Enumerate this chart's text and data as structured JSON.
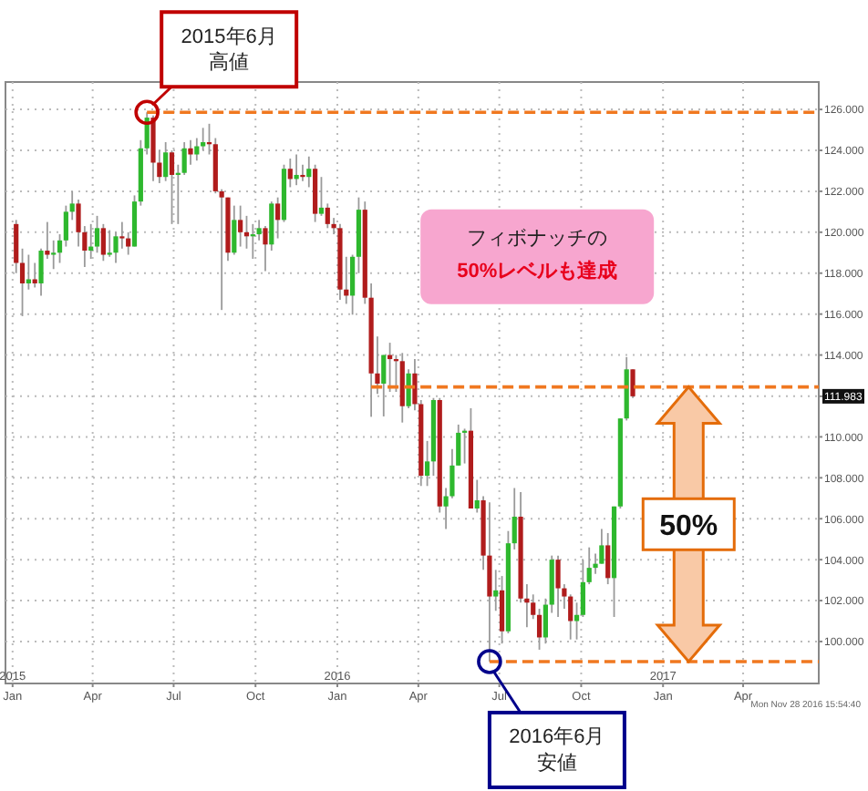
{
  "chart_data": {
    "type": "candlestick",
    "x": [
      "2015-01-05",
      "2015-01-12",
      "2015-01-19",
      "2015-01-26",
      "2015-02-02",
      "2015-02-09",
      "2015-02-16",
      "2015-02-23",
      "2015-03-02",
      "2015-03-09",
      "2015-03-16",
      "2015-03-23",
      "2015-03-30",
      "2015-04-06",
      "2015-04-13",
      "2015-04-20",
      "2015-04-27",
      "2015-05-04",
      "2015-05-11",
      "2015-05-18",
      "2015-05-25",
      "2015-06-01",
      "2015-06-08",
      "2015-06-15",
      "2015-06-22",
      "2015-06-29",
      "2015-07-06",
      "2015-07-13",
      "2015-07-20",
      "2015-07-27",
      "2015-08-03",
      "2015-08-10",
      "2015-08-17",
      "2015-08-24",
      "2015-08-31",
      "2015-09-07",
      "2015-09-14",
      "2015-09-21",
      "2015-09-28",
      "2015-10-05",
      "2015-10-12",
      "2015-10-19",
      "2015-10-26",
      "2015-11-02",
      "2015-11-09",
      "2015-11-16",
      "2015-11-23",
      "2015-11-30",
      "2015-12-07",
      "2015-12-14",
      "2015-12-21",
      "2015-12-28",
      "2016-01-04",
      "2016-01-11",
      "2016-01-18",
      "2016-01-25",
      "2016-02-01",
      "2016-02-08",
      "2016-02-15",
      "2016-02-22",
      "2016-02-29",
      "2016-03-07",
      "2016-03-14",
      "2016-03-21",
      "2016-03-28",
      "2016-04-04",
      "2016-04-11",
      "2016-04-18",
      "2016-04-25",
      "2016-05-02",
      "2016-05-09",
      "2016-05-16",
      "2016-05-23",
      "2016-05-30",
      "2016-06-06",
      "2016-06-13",
      "2016-06-20",
      "2016-06-27",
      "2016-07-04",
      "2016-07-11",
      "2016-07-18",
      "2016-07-25",
      "2016-08-01",
      "2016-08-08",
      "2016-08-15",
      "2016-08-22",
      "2016-08-29",
      "2016-09-05",
      "2016-09-12",
      "2016-09-19",
      "2016-09-26",
      "2016-10-03",
      "2016-10-10",
      "2016-10-17",
      "2016-10-24",
      "2016-10-31",
      "2016-11-07",
      "2016-11-14",
      "2016-11-21",
      "2016-11-28"
    ],
    "ohlc": [
      [
        120.4,
        120.6,
        118.0,
        118.5
      ],
      [
        118.5,
        119.2,
        115.9,
        117.5
      ],
      [
        117.5,
        118.9,
        117.2,
        117.7
      ],
      [
        117.7,
        118.5,
        117.3,
        117.5
      ],
      [
        117.5,
        119.2,
        116.9,
        119.1
      ],
      [
        119.1,
        120.5,
        118.7,
        118.9
      ],
      [
        118.9,
        119.6,
        118.2,
        119.0
      ],
      [
        119.0,
        119.9,
        118.5,
        119.6
      ],
      [
        119.6,
        121.3,
        119.3,
        121.0
      ],
      [
        121.0,
        122.0,
        120.6,
        121.4
      ],
      [
        121.4,
        121.6,
        119.3,
        120.0
      ],
      [
        120.0,
        120.3,
        118.3,
        119.1
      ],
      [
        119.1,
        120.4,
        118.7,
        119.3
      ],
      [
        119.3,
        120.8,
        119.0,
        120.2
      ],
      [
        120.2,
        120.4,
        118.6,
        118.9
      ],
      [
        118.9,
        120.1,
        118.8,
        119.0
      ],
      [
        119.0,
        120.0,
        118.5,
        119.8
      ],
      [
        119.8,
        120.5,
        119.2,
        119.7
      ],
      [
        119.7,
        120.0,
        118.9,
        119.3
      ],
      [
        119.3,
        121.8,
        119.3,
        121.5
      ],
      [
        121.5,
        124.5,
        121.3,
        124.1
      ],
      [
        124.1,
        125.86,
        123.8,
        125.6
      ],
      [
        125.6,
        125.7,
        122.5,
        123.4
      ],
      [
        123.4,
        124.0,
        122.4,
        122.7
      ],
      [
        122.7,
        124.4,
        122.5,
        123.9
      ],
      [
        123.9,
        124.0,
        120.4,
        122.8
      ],
      [
        122.8,
        123.3,
        120.4,
        122.9
      ],
      [
        122.9,
        124.4,
        122.8,
        124.1
      ],
      [
        124.1,
        124.5,
        123.3,
        123.8
      ],
      [
        123.8,
        124.6,
        123.5,
        124.2
      ],
      [
        124.2,
        125.1,
        124.0,
        124.4
      ],
      [
        124.4,
        125.3,
        123.8,
        124.3
      ],
      [
        124.3,
        124.6,
        121.9,
        122.0
      ],
      [
        122.0,
        122.1,
        116.2,
        121.7
      ],
      [
        121.7,
        121.7,
        118.6,
        119.0
      ],
      [
        119.0,
        121.3,
        118.9,
        120.6
      ],
      [
        120.6,
        121.3,
        119.3,
        120.0
      ],
      [
        120.0,
        120.8,
        119.2,
        119.8
      ],
      [
        119.8,
        120.4,
        118.7,
        119.9
      ],
      [
        119.9,
        120.6,
        119.6,
        120.2
      ],
      [
        120.2,
        120.3,
        118.1,
        119.4
      ],
      [
        119.4,
        121.5,
        119.1,
        121.4
      ],
      [
        121.4,
        121.7,
        119.7,
        120.6
      ],
      [
        120.6,
        123.3,
        120.5,
        123.1
      ],
      [
        123.1,
        123.6,
        122.2,
        122.6
      ],
      [
        122.6,
        123.8,
        122.3,
        122.8
      ],
      [
        122.8,
        123.3,
        122.5,
        122.7
      ],
      [
        122.7,
        123.7,
        122.2,
        123.1
      ],
      [
        123.1,
        123.3,
        120.5,
        120.9
      ],
      [
        120.9,
        122.7,
        120.8,
        121.2
      ],
      [
        121.2,
        121.4,
        120.2,
        120.4
      ],
      [
        120.4,
        120.7,
        119.9,
        120.2
      ],
      [
        120.2,
        120.4,
        116.7,
        117.2
      ],
      [
        117.2,
        118.8,
        116.5,
        116.9
      ],
      [
        116.9,
        118.9,
        115.97,
        118.8
      ],
      [
        118.8,
        121.7,
        118.0,
        121.1
      ],
      [
        121.1,
        121.5,
        116.5,
        116.8
      ],
      [
        116.8,
        117.5,
        110.98,
        113.1
      ],
      [
        113.1,
        114.9,
        112.1,
        112.6
      ],
      [
        112.6,
        114.0,
        111.0,
        114.0
      ],
      [
        114.0,
        114.6,
        112.2,
        113.8
      ],
      [
        113.8,
        114.0,
        112.2,
        113.7
      ],
      [
        113.7,
        114.1,
        110.7,
        111.5
      ],
      [
        111.5,
        113.3,
        111.4,
        113.1
      ],
      [
        113.1,
        113.8,
        111.3,
        111.6
      ],
      [
        111.6,
        111.8,
        107.6,
        108.1
      ],
      [
        108.1,
        109.8,
        107.6,
        108.8
      ],
      [
        108.8,
        111.9,
        108.1,
        111.8
      ],
      [
        111.8,
        111.9,
        106.3,
        106.6
      ],
      [
        106.6,
        107.5,
        105.5,
        107.1
      ],
      [
        107.1,
        109.4,
        107.0,
        108.6
      ],
      [
        108.6,
        110.6,
        108.6,
        110.2
      ],
      [
        110.2,
        110.4,
        108.7,
        110.3
      ],
      [
        110.3,
        111.4,
        106.5,
        106.5
      ],
      [
        106.5,
        107.9,
        106.3,
        106.9
      ],
      [
        106.9,
        107.1,
        103.5,
        104.2
      ],
      [
        104.2,
        106.8,
        99.02,
        102.2
      ],
      [
        102.2,
        103.5,
        101.5,
        102.5
      ],
      [
        102.5,
        103.2,
        99.9,
        100.5
      ],
      [
        100.5,
        105.4,
        100.4,
        104.8
      ],
      [
        104.8,
        107.5,
        104.5,
        106.1
      ],
      [
        106.1,
        107.3,
        101.9,
        102.1
      ],
      [
        102.1,
        102.8,
        100.7,
        101.9
      ],
      [
        101.9,
        102.3,
        101.1,
        101.3
      ],
      [
        101.3,
        101.6,
        99.6,
        100.2
      ],
      [
        100.2,
        102.1,
        99.9,
        101.8
      ],
      [
        101.8,
        104.2,
        101.4,
        104.0
      ],
      [
        104.0,
        104.2,
        101.2,
        102.6
      ],
      [
        102.6,
        102.8,
        101.6,
        102.2
      ],
      [
        102.2,
        102.3,
        100.1,
        101.0
      ],
      [
        101.0,
        101.9,
        100.1,
        101.3
      ],
      [
        101.3,
        104.0,
        101.2,
        102.9
      ],
      [
        102.9,
        104.6,
        102.8,
        103.6
      ],
      [
        103.6,
        104.3,
        103.3,
        103.8
      ],
      [
        103.8,
        105.5,
        103.8,
        104.7
      ],
      [
        104.7,
        105.3,
        102.8,
        103.1
      ],
      [
        103.1,
        106.6,
        101.2,
        106.6
      ],
      [
        106.6,
        110.9,
        106.5,
        110.9
      ],
      [
        110.9,
        113.9,
        110.8,
        113.3
      ],
      [
        113.3,
        113.3,
        111.9,
        111.983
      ]
    ],
    "colors": [
      "#b01c1c",
      "#b01c1c",
      "#2eb82e",
      "#b01c1c",
      "#2eb82e",
      "#b01c1c",
      "#2eb82e",
      "#2eb82e",
      "#2eb82e",
      "#2eb82e",
      "#b01c1c",
      "#b01c1c",
      "#2eb82e",
      "#2eb82e",
      "#b01c1c",
      "#2eb82e",
      "#2eb82e",
      "#b01c1c",
      "#b01c1c",
      "#2eb82e",
      "#2eb82e",
      "#2eb82e",
      "#b01c1c",
      "#b01c1c",
      "#2eb82e",
      "#b01c1c",
      "#2eb82e",
      "#2eb82e",
      "#b01c1c",
      "#2eb82e",
      "#2eb82e",
      "#b01c1c",
      "#b01c1c",
      "#b01c1c",
      "#b01c1c",
      "#2eb82e",
      "#b01c1c",
      "#b01c1c",
      "#2eb82e",
      "#2eb82e",
      "#b01c1c",
      "#2eb82e",
      "#b01c1c",
      "#2eb82e",
      "#b01c1c",
      "#2eb82e",
      "#b01c1c",
      "#2eb82e",
      "#b01c1c",
      "#2eb82e",
      "#b01c1c",
      "#b01c1c",
      "#b01c1c",
      "#b01c1c",
      "#2eb82e",
      "#2eb82e",
      "#b01c1c",
      "#b01c1c",
      "#b01c1c",
      "#2eb82e",
      "#b01c1c",
      "#b01c1c",
      "#b01c1c",
      "#2eb82e",
      "#b01c1c",
      "#b01c1c",
      "#2eb82e",
      "#2eb82e",
      "#b01c1c",
      "#2eb82e",
      "#2eb82e",
      "#2eb82e",
      "#2eb82e",
      "#b01c1c",
      "#2eb82e",
      "#b01c1c",
      "#b01c1c",
      "#2eb82e",
      "#b01c1c",
      "#2eb82e",
      "#2eb82e",
      "#b01c1c",
      "#b01c1c",
      "#b01c1c",
      "#b01c1c",
      "#2eb82e",
      "#2eb82e",
      "#b01c1c",
      "#b01c1c",
      "#b01c1c",
      "#2eb82e",
      "#2eb82e",
      "#2eb82e",
      "#2eb82e",
      "#2eb82e",
      "#b01c1c",
      "#2eb82e",
      "#2eb82e",
      "#2eb82e",
      "#b01c1c"
    ],
    "xlim": [
      "2014-12-24",
      "2017-06-25"
    ],
    "xticks": [
      {
        "value": "2015-01-01",
        "label": "2015\nJan"
      },
      {
        "value": "2015-04-01",
        "label": "Apr"
      },
      {
        "value": "2015-07-01",
        "label": "Jul"
      },
      {
        "value": "2015-10-01",
        "label": "Oct"
      },
      {
        "value": "2016-01-01",
        "label": "2016\nJan"
      },
      {
        "value": "2016-04-01",
        "label": "Apr"
      },
      {
        "value": "2016-07-01",
        "label": "Jul"
      },
      {
        "value": "2016-10-01",
        "label": "Oct"
      },
      {
        "value": "2017-01-01",
        "label": "2017\nJan"
      },
      {
        "value": "2017-04-01",
        "label": "Apr"
      }
    ],
    "ylim": [
      97.95,
      127.34
    ],
    "yticks": [
      {
        "value": 100,
        "label": "100.000"
      },
      {
        "value": 102,
        "label": "102.000"
      },
      {
        "value": 104,
        "label": "104.000"
      },
      {
        "value": 106,
        "label": "106.000"
      },
      {
        "value": 108,
        "label": "108.000"
      },
      {
        "value": 110,
        "label": "110.000"
      },
      {
        "value": 111.983,
        "label": "111.983"
      },
      {
        "value": 114,
        "label": "114.000"
      },
      {
        "value": 116,
        "label": "116.000"
      },
      {
        "value": 118,
        "label": "118.000"
      },
      {
        "value": 120,
        "label": "120.000"
      },
      {
        "value": 122,
        "label": "122.000"
      },
      {
        "value": 124,
        "label": "124.000"
      },
      {
        "value": 126,
        "label": "126.000"
      }
    ],
    "grid": true,
    "ref_lines": [
      {
        "axis": "y",
        "value": 125.86,
        "color": "#f07820",
        "line_style": "dashed"
      },
      {
        "axis": "y",
        "value": 112.44,
        "color": "#f07820",
        "line_style": "dashed"
      },
      {
        "axis": "y",
        "value": 99.02,
        "color": "#f07820",
        "line_style": "dashed"
      }
    ],
    "annotations": [
      {
        "text": "2015年6月高値",
        "x": "2015-06-01",
        "y": 125.86
      },
      {
        "text": "2016年6月安値",
        "x": "2016-06-20",
        "y": 99.02
      },
      "フィボナッチの",
      "50%レベルも達成",
      "50%",
      "Mon Nov 28 2016 15:54:40"
    ]
  }
}
